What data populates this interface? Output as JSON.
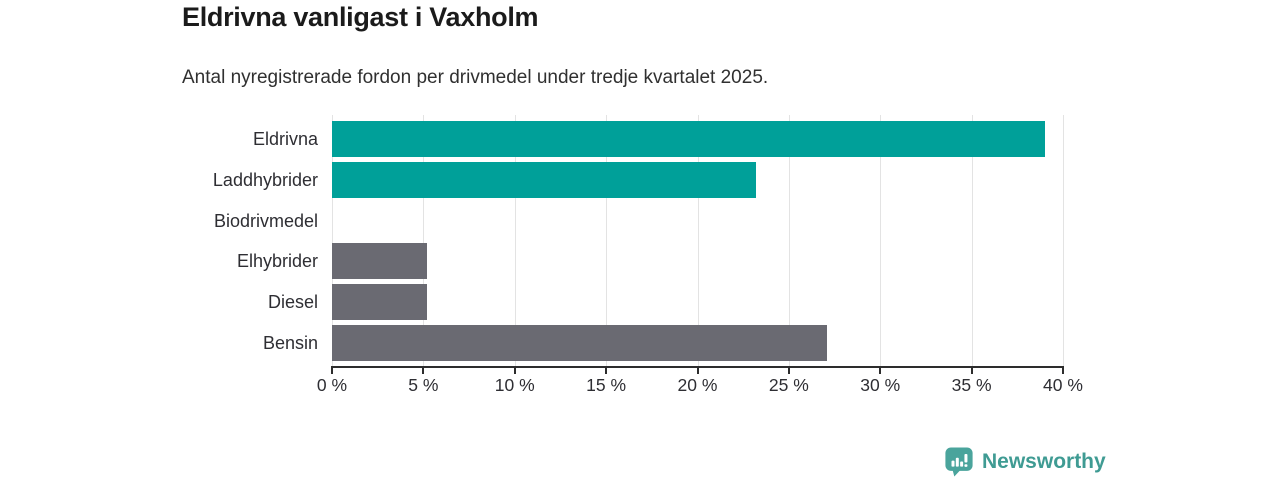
{
  "header": {
    "title": "Eldrivna vanligast i Vaxholm",
    "subtitle": "Antal nyregistrerade fordon per drivmedel under tredje kvartalet 2025."
  },
  "chart_data": {
    "type": "bar",
    "orientation": "horizontal",
    "title": "Eldrivna vanligast i Vaxholm",
    "subtitle": "Antal nyregistrerade fordon per drivmedel under tredje kvartalet 2025.",
    "categories": [
      "Eldrivna",
      "Laddhybrider",
      "Biodrivmedel",
      "Elhybrider",
      "Diesel",
      "Bensin"
    ],
    "values": [
      39,
      23.2,
      0,
      5.2,
      5.2,
      27.1
    ],
    "unit": "%",
    "bar_colors": [
      "#00a099",
      "#00a099",
      "#00a099",
      "#6a6a72",
      "#6a6a72",
      "#6a6a72"
    ],
    "xlabel": "",
    "ylabel": "",
    "xlim": [
      0,
      40
    ],
    "x_ticks": [
      0,
      5,
      10,
      15,
      20,
      25,
      30,
      35,
      40
    ],
    "x_tick_labels": [
      "0 %",
      "5 %",
      "10 %",
      "15 %",
      "20 %",
      "25 %",
      "30 %",
      "35 %",
      "40 %"
    ],
    "grid": true,
    "legend": false
  },
  "branding": {
    "logo_text": "Newsworthy",
    "logo_text_color": "#3f9b93",
    "logo_icon": "bar-chart-speech-bubble-icon",
    "logo_icon_color": "#4aa49c"
  },
  "colors": {
    "accent_teal": "#00a099",
    "neutral_gray": "#6a6a72",
    "axis": "#2d2d2d",
    "gridline": "#e3e3e3",
    "text_dark": "#1b1b1b"
  }
}
